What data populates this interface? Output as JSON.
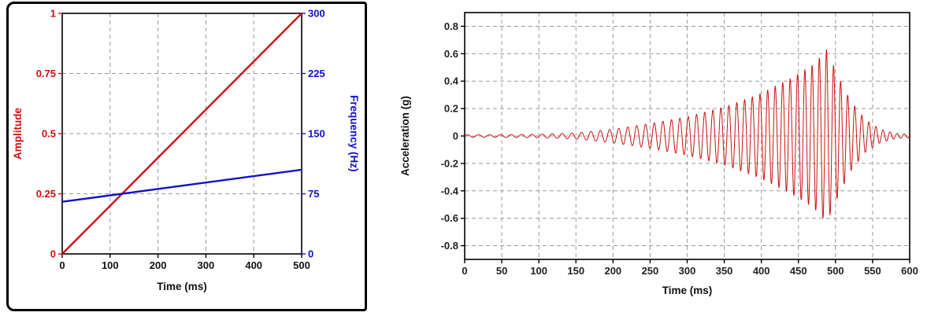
{
  "page": {
    "background": "#ffffff"
  },
  "chart_data": [
    {
      "id": "chirp-definition",
      "type": "line",
      "title": "",
      "xlabel": "Time (ms)",
      "ylabel_left": "Amplitude",
      "ylabel_right": "Frequency (Hz)",
      "xlim": [
        0,
        500
      ],
      "x_ticks": [
        0,
        100,
        200,
        300,
        400,
        500
      ],
      "ylim_left": [
        0,
        1
      ],
      "y_ticks_left": [
        0,
        0.25,
        0.5,
        0.75,
        1
      ],
      "ylim_right": [
        0,
        300
      ],
      "y_ticks_right": [
        0,
        75,
        150,
        225,
        300
      ],
      "grid": "dashed",
      "legend": "none",
      "colors": {
        "left_axis": "#cc1111",
        "right_axis": "#1111cc",
        "grid": "#999999",
        "frame": "#000000",
        "x_ticks": "#111111"
      },
      "series": [
        {
          "name": "amplitude",
          "axis": "left",
          "color": "#cc1111",
          "x": [
            0,
            500
          ],
          "y": [
            0,
            1
          ]
        },
        {
          "name": "frequency",
          "axis": "right",
          "color": "#1111cc",
          "x": [
            0,
            500
          ],
          "y": [
            65,
            105
          ]
        }
      ]
    },
    {
      "id": "acceleration-waveform",
      "type": "line",
      "title": "",
      "xlabel": "Time (ms)",
      "ylabel": "Acceleration (g)",
      "xlim": [
        0,
        600
      ],
      "x_ticks": [
        0,
        50,
        100,
        150,
        200,
        250,
        300,
        350,
        400,
        450,
        500,
        550,
        600
      ],
      "ylim": [
        -0.9,
        0.9
      ],
      "y_ticks": [
        -0.8,
        -0.6,
        -0.4,
        -0.2,
        0,
        0.2,
        0.4,
        0.6,
        0.8
      ],
      "grid": "dashed",
      "legend": "none",
      "colors": {
        "line": "#cc1111",
        "grid": "#999999",
        "frame": "#000000",
        "ticks": "#222222"
      },
      "series": [
        {
          "name": "acceleration",
          "color": "#cc1111",
          "signal": {
            "kind": "chirp",
            "freq_hz_start": 65,
            "freq_hz_end": 105,
            "freq_ramp_ms": [
              0,
              500
            ],
            "sample_step_ms": 0.25,
            "envelope_keypoints": [
              [
                0,
                0.008
              ],
              [
                50,
                0.01
              ],
              [
                100,
                0.013
              ],
              [
                150,
                0.022
              ],
              [
                200,
                0.05
              ],
              [
                250,
                0.09
              ],
              [
                300,
                0.14
              ],
              [
                350,
                0.21
              ],
              [
                400,
                0.31
              ],
              [
                440,
                0.42
              ],
              [
                470,
                0.52
              ],
              [
                488,
                0.63
              ],
              [
                505,
                0.42
              ],
              [
                520,
                0.26
              ],
              [
                540,
                0.12
              ],
              [
                560,
                0.05
              ],
              [
                580,
                0.02
              ],
              [
                600,
                0.012
              ]
            ]
          }
        }
      ]
    }
  ]
}
